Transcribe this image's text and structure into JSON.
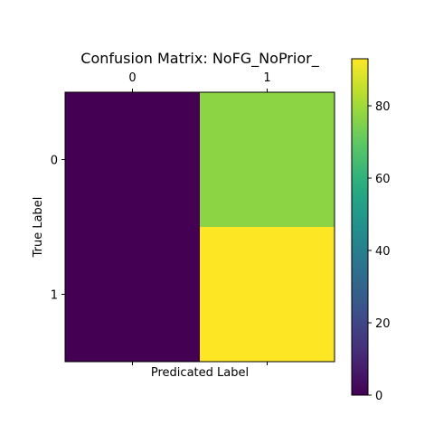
{
  "chart_data": {
    "type": "heatmap",
    "title": "Confusion Matrix: NoFG_NoPrior_",
    "xlabel": "Predicated Label",
    "ylabel": "True Label",
    "x_categories": [
      "0",
      "1"
    ],
    "y_categories": [
      "0",
      "1"
    ],
    "values": [
      [
        0,
        77
      ],
      [
        0,
        93
      ]
    ],
    "colormap": "viridis",
    "vmin": 0,
    "vmax": 93,
    "colorbar_ticks": [
      0,
      20,
      40,
      60,
      80
    ],
    "x_tick_position": "top",
    "grid": false
  }
}
